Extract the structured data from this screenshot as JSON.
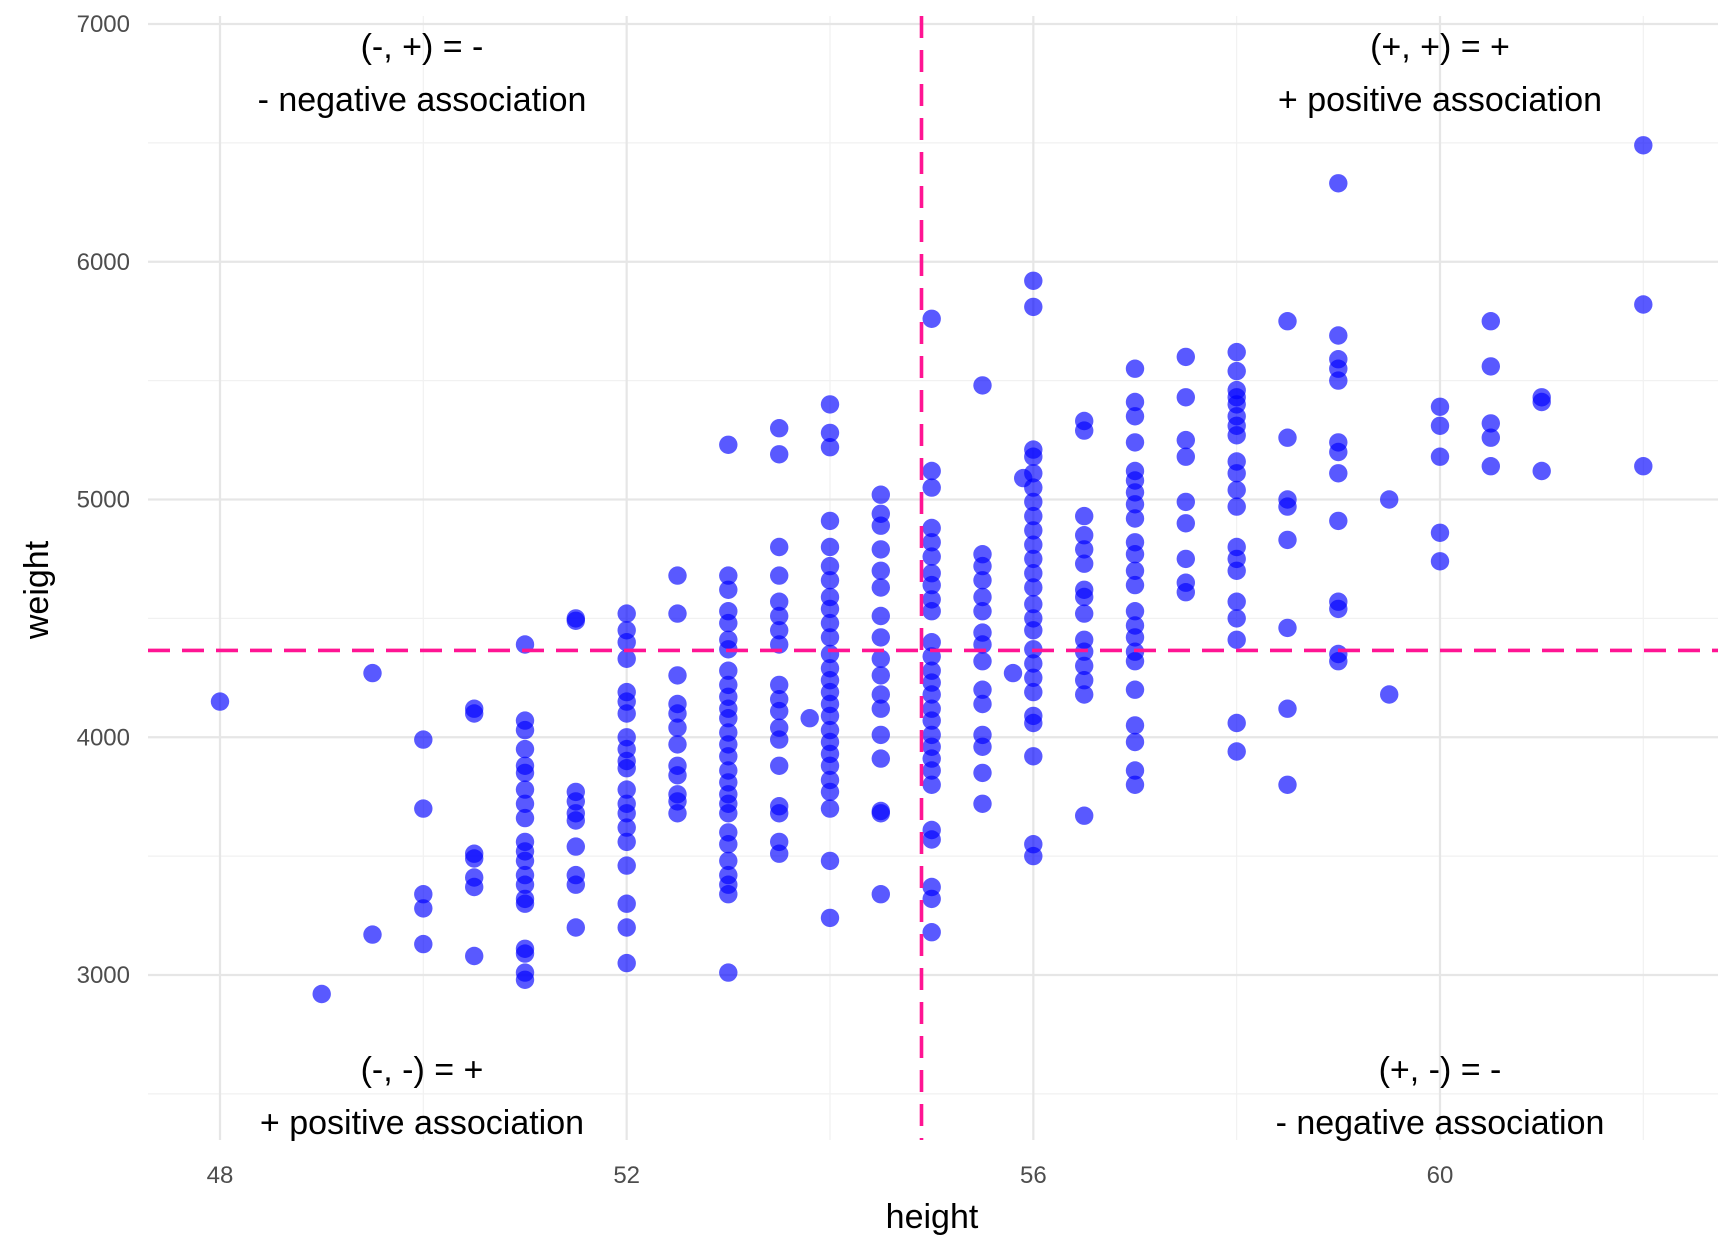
{
  "chart_data": {
    "type": "scatter",
    "title": "",
    "xlabel": "height",
    "ylabel": "weight",
    "xlim": [
      47.3,
      62.7
    ],
    "ylim": [
      2280,
      7000
    ],
    "x_ticks": [
      48,
      52,
      56,
      60
    ],
    "y_ticks": [
      3000,
      4000,
      5000,
      6000,
      7000
    ],
    "x_tick_labels": [
      "48",
      "52",
      "56",
      "60"
    ],
    "y_tick_labels": [
      "3000",
      "4000",
      "5000",
      "6000",
      "7000"
    ],
    "grid": true,
    "point_color": "#0000ff",
    "reference_line_color": "#ff1493",
    "mean_x": 54.9,
    "mean_y": 4365,
    "annotations": [
      {
        "position": "top-left",
        "line1": "(-, +) = -",
        "line2": "- negative association"
      },
      {
        "position": "top-right",
        "line1": "(+, +) = +",
        "line2": "+ positive association"
      },
      {
        "position": "bottom-left",
        "line1": "(-, -) = +",
        "line2": "+ positive association"
      },
      {
        "position": "bottom-right",
        "line1": "(+, -) = -",
        "line2": "- negative association"
      }
    ],
    "points": [
      [
        48,
        4150
      ],
      [
        49,
        2920
      ],
      [
        49.5,
        4270
      ],
      [
        49.5,
        3170
      ],
      [
        50,
        3990
      ],
      [
        50,
        3700
      ],
      [
        50,
        3340
      ],
      [
        50,
        3280
      ],
      [
        50,
        3130
      ],
      [
        50.5,
        4120
      ],
      [
        50.5,
        4100
      ],
      [
        50.5,
        3510
      ],
      [
        50.5,
        3490
      ],
      [
        50.5,
        3410
      ],
      [
        50.5,
        3370
      ],
      [
        50.5,
        3080
      ],
      [
        51,
        4390
      ],
      [
        51,
        4070
      ],
      [
        51,
        4030
      ],
      [
        51,
        3950
      ],
      [
        51,
        3880
      ],
      [
        51,
        3850
      ],
      [
        51,
        3780
      ],
      [
        51,
        3720
      ],
      [
        51,
        3660
      ],
      [
        51,
        3560
      ],
      [
        51,
        3520
      ],
      [
        51,
        3480
      ],
      [
        51,
        3420
      ],
      [
        51,
        3380
      ],
      [
        51,
        3320
      ],
      [
        51,
        3300
      ],
      [
        51,
        3110
      ],
      [
        51,
        3090
      ],
      [
        51,
        3010
      ],
      [
        51,
        2980
      ],
      [
        51.5,
        4500
      ],
      [
        51.5,
        4490
      ],
      [
        51.5,
        3770
      ],
      [
        51.5,
        3730
      ],
      [
        51.5,
        3680
      ],
      [
        51.5,
        3650
      ],
      [
        51.5,
        3540
      ],
      [
        51.5,
        3420
      ],
      [
        51.5,
        3380
      ],
      [
        51.5,
        3200
      ],
      [
        52,
        4520
      ],
      [
        52,
        4450
      ],
      [
        52,
        4400
      ],
      [
        52,
        4330
      ],
      [
        52,
        4190
      ],
      [
        52,
        4150
      ],
      [
        52,
        4100
      ],
      [
        52,
        4000
      ],
      [
        52,
        3950
      ],
      [
        52,
        3900
      ],
      [
        52,
        3870
      ],
      [
        52,
        3780
      ],
      [
        52,
        3720
      ],
      [
        52,
        3680
      ],
      [
        52,
        3620
      ],
      [
        52,
        3560
      ],
      [
        52,
        3460
      ],
      [
        52,
        3300
      ],
      [
        52,
        3200
      ],
      [
        52,
        3050
      ],
      [
        52.5,
        4680
      ],
      [
        52.5,
        4520
      ],
      [
        52.5,
        4260
      ],
      [
        52.5,
        4140
      ],
      [
        52.5,
        4100
      ],
      [
        52.5,
        4040
      ],
      [
        52.5,
        3970
      ],
      [
        52.5,
        3880
      ],
      [
        52.5,
        3840
      ],
      [
        52.5,
        3760
      ],
      [
        52.5,
        3730
      ],
      [
        52.5,
        3680
      ],
      [
        53,
        5230
      ],
      [
        53,
        4680
      ],
      [
        53,
        4620
      ],
      [
        53,
        4530
      ],
      [
        53,
        4480
      ],
      [
        53,
        4410
      ],
      [
        53,
        4370
      ],
      [
        53,
        4280
      ],
      [
        53,
        4220
      ],
      [
        53,
        4170
      ],
      [
        53,
        4120
      ],
      [
        53,
        4080
      ],
      [
        53,
        4020
      ],
      [
        53,
        3970
      ],
      [
        53,
        3920
      ],
      [
        53,
        3860
      ],
      [
        53,
        3810
      ],
      [
        53,
        3760
      ],
      [
        53,
        3720
      ],
      [
        53,
        3680
      ],
      [
        53,
        3600
      ],
      [
        53,
        3550
      ],
      [
        53,
        3480
      ],
      [
        53,
        3420
      ],
      [
        53,
        3380
      ],
      [
        53,
        3340
      ],
      [
        53,
        3010
      ],
      [
        53.5,
        5300
      ],
      [
        53.5,
        5190
      ],
      [
        53.5,
        4800
      ],
      [
        53.5,
        4680
      ],
      [
        53.5,
        4570
      ],
      [
        53.5,
        4510
      ],
      [
        53.5,
        4450
      ],
      [
        53.5,
        4390
      ],
      [
        53.5,
        4220
      ],
      [
        53.5,
        4160
      ],
      [
        53.5,
        4110
      ],
      [
        53.5,
        4040
      ],
      [
        53.5,
        3990
      ],
      [
        53.5,
        3880
      ],
      [
        53.5,
        3710
      ],
      [
        53.5,
        3680
      ],
      [
        53.5,
        3560
      ],
      [
        53.5,
        3510
      ],
      [
        53.8,
        4080
      ],
      [
        54,
        5400
      ],
      [
        54,
        5280
      ],
      [
        54,
        5220
      ],
      [
        54,
        4910
      ],
      [
        54,
        4800
      ],
      [
        54,
        4720
      ],
      [
        54,
        4660
      ],
      [
        54,
        4590
      ],
      [
        54,
        4540
      ],
      [
        54,
        4480
      ],
      [
        54,
        4420
      ],
      [
        54,
        4350
      ],
      [
        54,
        4290
      ],
      [
        54,
        4240
      ],
      [
        54,
        4190
      ],
      [
        54,
        4140
      ],
      [
        54,
        4090
      ],
      [
        54,
        4030
      ],
      [
        54,
        3980
      ],
      [
        54,
        3930
      ],
      [
        54,
        3880
      ],
      [
        54,
        3820
      ],
      [
        54,
        3770
      ],
      [
        54,
        3700
      ],
      [
        54,
        3480
      ],
      [
        54,
        3240
      ],
      [
        54.5,
        5020
      ],
      [
        54.5,
        4940
      ],
      [
        54.5,
        4890
      ],
      [
        54.5,
        4790
      ],
      [
        54.5,
        4700
      ],
      [
        54.5,
        4630
      ],
      [
        54.5,
        4510
      ],
      [
        54.5,
        4420
      ],
      [
        54.5,
        4330
      ],
      [
        54.5,
        4260
      ],
      [
        54.5,
        4180
      ],
      [
        54.5,
        4120
      ],
      [
        54.5,
        4010
      ],
      [
        54.5,
        3910
      ],
      [
        54.5,
        3690
      ],
      [
        54.5,
        3680
      ],
      [
        54.5,
        3340
      ],
      [
        55,
        5760
      ],
      [
        55,
        5120
      ],
      [
        55,
        5050
      ],
      [
        55,
        4880
      ],
      [
        55,
        4820
      ],
      [
        55,
        4760
      ],
      [
        55,
        4690
      ],
      [
        55,
        4640
      ],
      [
        55,
        4580
      ],
      [
        55,
        4530
      ],
      [
        55,
        4400
      ],
      [
        55,
        4340
      ],
      [
        55,
        4280
      ],
      [
        55,
        4230
      ],
      [
        55,
        4180
      ],
      [
        55,
        4120
      ],
      [
        55,
        4070
      ],
      [
        55,
        4010
      ],
      [
        55,
        3960
      ],
      [
        55,
        3910
      ],
      [
        55,
        3860
      ],
      [
        55,
        3800
      ],
      [
        55,
        3610
      ],
      [
        55,
        3570
      ],
      [
        55,
        3370
      ],
      [
        55,
        3320
      ],
      [
        55,
        3180
      ],
      [
        55.5,
        5480
      ],
      [
        55.5,
        4770
      ],
      [
        55.5,
        4720
      ],
      [
        55.5,
        4660
      ],
      [
        55.5,
        4590
      ],
      [
        55.5,
        4530
      ],
      [
        55.5,
        4440
      ],
      [
        55.5,
        4390
      ],
      [
        55.5,
        4320
      ],
      [
        55.5,
        4200
      ],
      [
        55.5,
        4140
      ],
      [
        55.5,
        4010
      ],
      [
        55.5,
        3960
      ],
      [
        55.5,
        3850
      ],
      [
        55.5,
        3720
      ],
      [
        55.8,
        4270
      ],
      [
        55.9,
        5090
      ],
      [
        56,
        5920
      ],
      [
        56,
        5810
      ],
      [
        56,
        5210
      ],
      [
        56,
        5180
      ],
      [
        56,
        5110
      ],
      [
        56,
        5050
      ],
      [
        56,
        4990
      ],
      [
        56,
        4930
      ],
      [
        56,
        4870
      ],
      [
        56,
        4810
      ],
      [
        56,
        4750
      ],
      [
        56,
        4690
      ],
      [
        56,
        4630
      ],
      [
        56,
        4560
      ],
      [
        56,
        4500
      ],
      [
        56,
        4450
      ],
      [
        56,
        4370
      ],
      [
        56,
        4310
      ],
      [
        56,
        4250
      ],
      [
        56,
        4190
      ],
      [
        56,
        4090
      ],
      [
        56,
        4060
      ],
      [
        56,
        3920
      ],
      [
        56,
        3550
      ],
      [
        56,
        3500
      ],
      [
        56.5,
        5330
      ],
      [
        56.5,
        5290
      ],
      [
        56.5,
        4930
      ],
      [
        56.5,
        4850
      ],
      [
        56.5,
        4790
      ],
      [
        56.5,
        4730
      ],
      [
        56.5,
        4620
      ],
      [
        56.5,
        4590
      ],
      [
        56.5,
        4520
      ],
      [
        56.5,
        4410
      ],
      [
        56.5,
        4360
      ],
      [
        56.5,
        4300
      ],
      [
        56.5,
        4240
      ],
      [
        56.5,
        4180
      ],
      [
        56.5,
        3670
      ],
      [
        57,
        5550
      ],
      [
        57,
        5410
      ],
      [
        57,
        5350
      ],
      [
        57,
        5240
      ],
      [
        57,
        5120
      ],
      [
        57,
        5080
      ],
      [
        57,
        5030
      ],
      [
        57,
        4980
      ],
      [
        57,
        4920
      ],
      [
        57,
        4820
      ],
      [
        57,
        4770
      ],
      [
        57,
        4700
      ],
      [
        57,
        4640
      ],
      [
        57,
        4530
      ],
      [
        57,
        4470
      ],
      [
        57,
        4420
      ],
      [
        57,
        4360
      ],
      [
        57,
        4320
      ],
      [
        57,
        4200
      ],
      [
        57,
        4050
      ],
      [
        57,
        3980
      ],
      [
        57,
        3860
      ],
      [
        57,
        3800
      ],
      [
        57.5,
        5600
      ],
      [
        57.5,
        5430
      ],
      [
        57.5,
        5250
      ],
      [
        57.5,
        5180
      ],
      [
        57.5,
        4990
      ],
      [
        57.5,
        4900
      ],
      [
        57.5,
        4750
      ],
      [
        57.5,
        4650
      ],
      [
        57.5,
        4610
      ],
      [
        58,
        5620
      ],
      [
        58,
        5540
      ],
      [
        58,
        5460
      ],
      [
        58,
        5430
      ],
      [
        58,
        5400
      ],
      [
        58,
        5350
      ],
      [
        58,
        5310
      ],
      [
        58,
        5270
      ],
      [
        58,
        5160
      ],
      [
        58,
        5110
      ],
      [
        58,
        5040
      ],
      [
        58,
        4970
      ],
      [
        58,
        4800
      ],
      [
        58,
        4750
      ],
      [
        58,
        4700
      ],
      [
        58,
        4570
      ],
      [
        58,
        4500
      ],
      [
        58,
        4410
      ],
      [
        58,
        4060
      ],
      [
        58,
        3940
      ],
      [
        58.5,
        5750
      ],
      [
        58.5,
        5260
      ],
      [
        58.5,
        5000
      ],
      [
        58.5,
        4970
      ],
      [
        58.5,
        4830
      ],
      [
        58.5,
        4460
      ],
      [
        58.5,
        4120
      ],
      [
        58.5,
        3800
      ],
      [
        59,
        6330
      ],
      [
        59,
        5690
      ],
      [
        59,
        5590
      ],
      [
        59,
        5550
      ],
      [
        59,
        5500
      ],
      [
        59,
        5240
      ],
      [
        59,
        5200
      ],
      [
        59,
        5110
      ],
      [
        59,
        4910
      ],
      [
        59,
        4570
      ],
      [
        59,
        4540
      ],
      [
        59,
        4350
      ],
      [
        59,
        4320
      ],
      [
        59.5,
        5000
      ],
      [
        59.5,
        4180
      ],
      [
        60,
        5390
      ],
      [
        60,
        5310
      ],
      [
        60,
        5180
      ],
      [
        60,
        4860
      ],
      [
        60,
        4740
      ],
      [
        60.5,
        5750
      ],
      [
        60.5,
        5560
      ],
      [
        60.5,
        5320
      ],
      [
        60.5,
        5260
      ],
      [
        60.5,
        5140
      ],
      [
        61,
        5430
      ],
      [
        61,
        5410
      ],
      [
        61,
        5120
      ],
      [
        62,
        6490
      ],
      [
        62,
        5820
      ],
      [
        62,
        5140
      ]
    ]
  }
}
